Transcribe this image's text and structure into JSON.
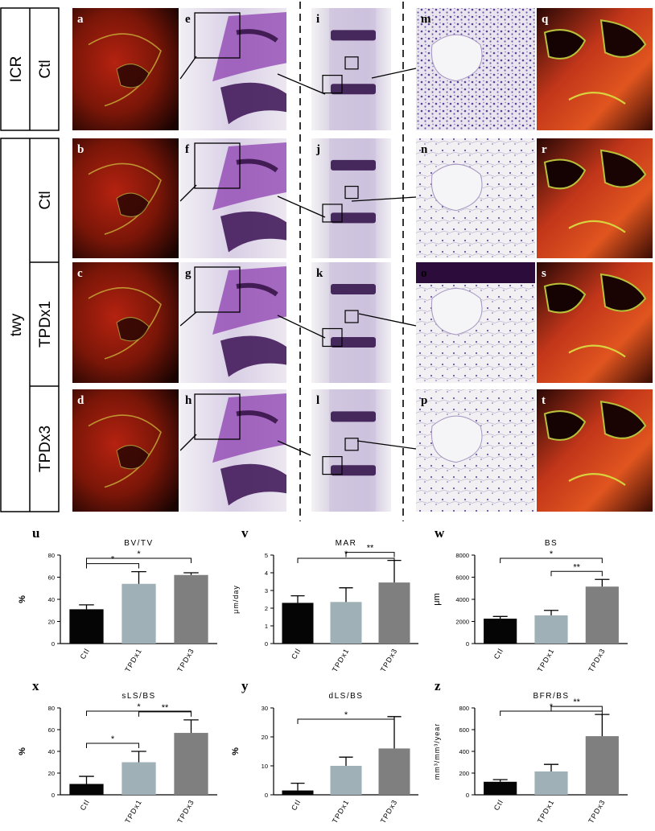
{
  "figure": {
    "group_labels": {
      "icr": "ICR",
      "twy": "twy"
    },
    "row_labels": [
      "Ctl",
      "Ctl",
      "TPDx1",
      "TPDx3"
    ],
    "panel_letters": {
      "fluor_left": [
        "a",
        "b",
        "c",
        "d"
      ],
      "histo_zoom": [
        "e",
        "f",
        "g",
        "h"
      ],
      "histo_overview": [
        "i",
        "j",
        "k",
        "l"
      ],
      "histo_detail": [
        "m",
        "n",
        "o",
        "p"
      ],
      "fluor_right": [
        "q",
        "r",
        "s",
        "t"
      ]
    }
  },
  "chart_data": [
    {
      "panel": "u",
      "type": "bar",
      "title": "BV/TV",
      "ylabel": "%",
      "categories": [
        "Ctl",
        "TPDx1",
        "TPDx3"
      ],
      "values": [
        31,
        54,
        62
      ],
      "errors": [
        4,
        11,
        2
      ],
      "ylim": [
        0,
        80
      ],
      "yticks": [
        "0",
        "20",
        "40",
        "60",
        "80"
      ],
      "colors": [
        "#050505",
        "#9fb0b6",
        "#7f7f7f"
      ],
      "significance": [
        {
          "from": 0,
          "to": 1,
          "label": "*"
        },
        {
          "from": 0,
          "to": 2,
          "label": "*"
        }
      ]
    },
    {
      "panel": "v",
      "type": "bar",
      "title": "MAR",
      "ylabel": "μm/day",
      "categories": [
        "Ctl",
        "TPDx1",
        "TPDx3"
      ],
      "values": [
        2.3,
        2.35,
        3.45
      ],
      "errors": [
        0.4,
        0.8,
        1.25
      ],
      "ylim": [
        0,
        5
      ],
      "yticks": [
        "0",
        "1",
        "2",
        "3",
        "4",
        "5"
      ],
      "colors": [
        "#050505",
        "#9fb0b6",
        "#7f7f7f"
      ],
      "significance": [
        {
          "from": 0,
          "to": 2,
          "label": "*"
        },
        {
          "from": 1,
          "to": 2,
          "label": "**"
        }
      ]
    },
    {
      "panel": "w",
      "type": "bar",
      "title": "BS",
      "ylabel": "μm",
      "categories": [
        "Ctl",
        "TPDx1",
        "TPDx3"
      ],
      "values": [
        2250,
        2550,
        5150
      ],
      "errors": [
        200,
        450,
        650
      ],
      "ylim": [
        0,
        8000
      ],
      "yticks": [
        "0",
        "2000",
        "4000",
        "6000",
        "8000"
      ],
      "colors": [
        "#050505",
        "#9fb0b6",
        "#7f7f7f"
      ],
      "significance": [
        {
          "from": 0,
          "to": 2,
          "label": "*"
        },
        {
          "from": 1,
          "to": 2,
          "label": "**"
        }
      ]
    },
    {
      "panel": "x",
      "type": "bar",
      "title": "sLS/BS",
      "ylabel": "%",
      "categories": [
        "Ctl",
        "TPDx1",
        "TPDx3"
      ],
      "values": [
        10,
        30,
        57
      ],
      "errors": [
        7,
        10,
        12
      ],
      "ylim": [
        0,
        80
      ],
      "yticks": [
        "0",
        "20",
        "40",
        "60",
        "80"
      ],
      "colors": [
        "#050505",
        "#9fb0b6",
        "#7f7f7f"
      ],
      "significance": [
        {
          "from": 0,
          "to": 1,
          "label": "*"
        },
        {
          "from": 0,
          "to": 2,
          "label": "*"
        },
        {
          "from": 1,
          "to": 2,
          "label": "**"
        }
      ]
    },
    {
      "panel": "y",
      "type": "bar",
      "title": "dLS/BS",
      "ylabel": "%",
      "categories": [
        "Ctl",
        "TPDx1",
        "TPDx3"
      ],
      "values": [
        1.5,
        10,
        16
      ],
      "errors": [
        2.5,
        3,
        11
      ],
      "ylim": [
        0,
        30
      ],
      "yticks": [
        "0",
        "10",
        "20",
        "30"
      ],
      "colors": [
        "#050505",
        "#9fb0b6",
        "#7f7f7f"
      ],
      "significance": [
        {
          "from": 0,
          "to": 2,
          "label": "*"
        }
      ]
    },
    {
      "panel": "z",
      "type": "bar",
      "title": "BFR/BS",
      "ylabel": "mm³/mm³/year",
      "categories": [
        "Ctl",
        "TPDx1",
        "TPDx3"
      ],
      "values": [
        120,
        215,
        540
      ],
      "errors": [
        20,
        65,
        200
      ],
      "ylim": [
        0,
        800
      ],
      "yticks": [
        "0",
        "200",
        "400",
        "600",
        "800"
      ],
      "colors": [
        "#050505",
        "#9fb0b6",
        "#7f7f7f"
      ],
      "significance": [
        {
          "from": 0,
          "to": 2,
          "label": "*"
        },
        {
          "from": 1,
          "to": 2,
          "label": "**"
        }
      ]
    }
  ]
}
